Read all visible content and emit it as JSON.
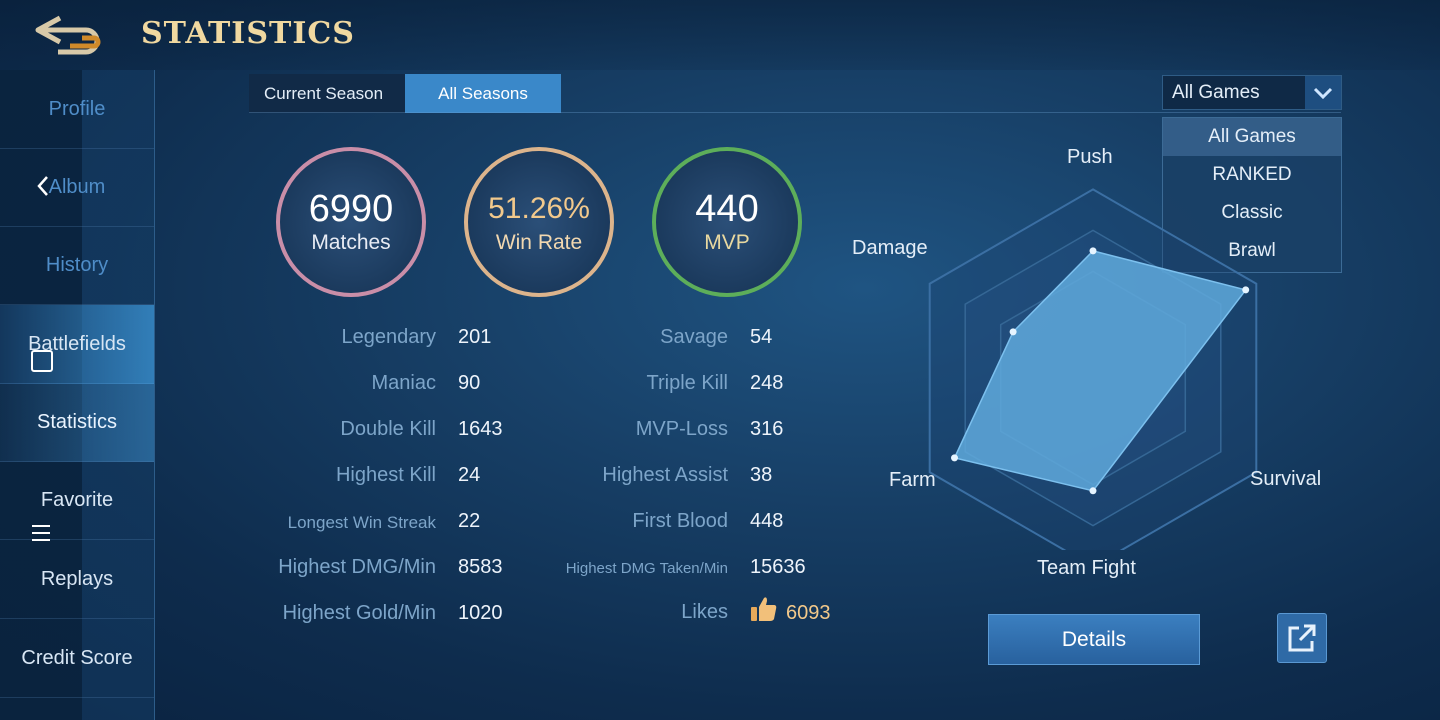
{
  "header": {
    "title": "STATISTICS"
  },
  "sidebar": {
    "items": [
      {
        "label": "Profile"
      },
      {
        "label": "Album"
      },
      {
        "label": "History"
      },
      {
        "label": "Battlefields"
      },
      {
        "label": "Statistics"
      },
      {
        "label": "Favorite"
      },
      {
        "label": "Replays"
      },
      {
        "label": "Credit Score"
      }
    ]
  },
  "tabs": [
    {
      "label": "Current Season"
    },
    {
      "label": "All Seasons"
    }
  ],
  "filter": {
    "selected": "All Games",
    "options": [
      "All Games",
      "RANKED",
      "Classic",
      "Brawl"
    ]
  },
  "summary": {
    "matches": {
      "value": "6990",
      "label": "Matches"
    },
    "win_rate": {
      "value": "51.26%",
      "label": "Win Rate"
    },
    "mvp": {
      "value": "440",
      "label": "MVP"
    }
  },
  "stats_left": [
    {
      "label": "Legendary",
      "value": "201"
    },
    {
      "label": "Maniac",
      "value": "90"
    },
    {
      "label": "Double Kill",
      "value": "1643"
    },
    {
      "label": "Highest Kill",
      "value": "24"
    },
    {
      "label": "Longest Win Streak",
      "value": "22"
    },
    {
      "label": "Highest DMG/Min",
      "value": "8583"
    },
    {
      "label": "Highest Gold/Min",
      "value": "1020"
    }
  ],
  "stats_right": [
    {
      "label": "Savage",
      "value": "54"
    },
    {
      "label": "Triple Kill",
      "value": "248"
    },
    {
      "label": "MVP-Loss",
      "value": "316"
    },
    {
      "label": "Highest Assist",
      "value": "38"
    },
    {
      "label": "First Blood",
      "value": "448"
    },
    {
      "label": "Highest DMG Taken/Min",
      "value": "15636"
    },
    {
      "label": "Likes",
      "value": "6093"
    }
  ],
  "radar": {
    "axes": [
      "Push",
      "Survival",
      "Team Fight",
      "Farm",
      "Damage"
    ],
    "values": [
      0.62,
      0.86,
      0.55,
      0.78,
      0.45
    ],
    "fill_color": "#5fa9dc"
  },
  "actions": {
    "details_label": "Details"
  },
  "colors": {
    "accent": "#3a88c9",
    "title_gold": "#f0d8a0",
    "matches_ring": "#c98ea8",
    "winrate_ring": "#dcb48c",
    "mvp_ring": "#5dae5a"
  },
  "icons": [
    "back-arrow-icon",
    "chevron-left-icon",
    "square-icon",
    "menu-icon",
    "chevron-down-icon",
    "thumbs-up-icon",
    "external-link-icon"
  ]
}
